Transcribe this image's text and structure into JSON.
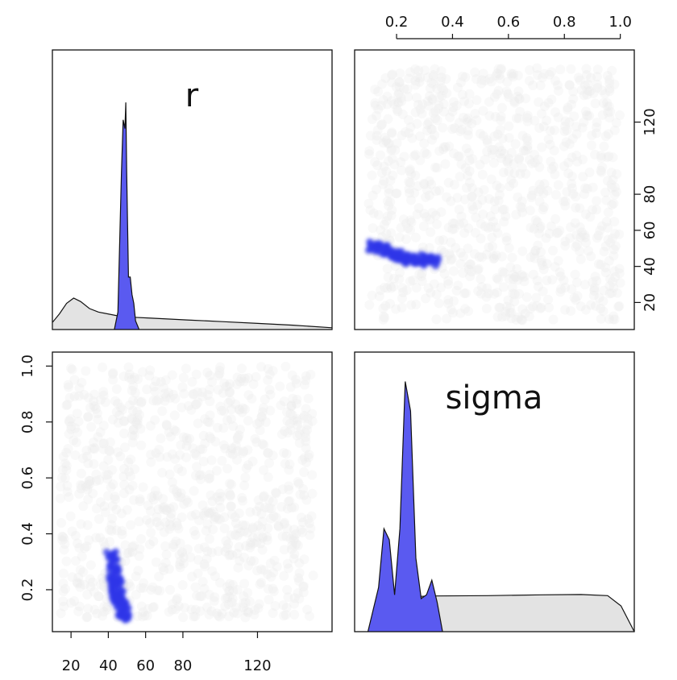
{
  "chart_data": {
    "type": "scatter",
    "parameters": [
      "r",
      "sigma"
    ],
    "panels": {
      "r_density": {
        "label": "r",
        "type": "density",
        "x_ticks": [
          20,
          40,
          60,
          80,
          120
        ],
        "xlim": [
          4,
          162
        ],
        "prior": {
          "x": [
            4,
            8,
            12,
            16,
            20,
            25,
            30,
            40,
            50,
            60,
            80,
            100,
            120,
            140,
            162
          ],
          "density": [
            0.004,
            0.009,
            0.015,
            0.018,
            0.016,
            0.012,
            0.01,
            0.008,
            0.007,
            0.0065,
            0.0055,
            0.0045,
            0.0035,
            0.0025,
            0.001
          ]
        },
        "posterior": {
          "x": [
            39,
            41,
            43,
            44,
            45,
            45.5,
            46,
            46.5,
            47,
            48,
            49,
            50,
            51,
            53
          ],
          "density": [
            0.0,
            0.01,
            0.09,
            0.12,
            0.115,
            0.13,
            0.09,
            0.06,
            0.03,
            0.03,
            0.02,
            0.015,
            0.005,
            0.0
          ]
        },
        "ylim": [
          0,
          0.16
        ]
      },
      "sigma_density": {
        "label": "sigma",
        "type": "density",
        "x_ticks": [
          0.2,
          0.4,
          0.6,
          0.8,
          1.0
        ],
        "xlim": [
          0.0,
          1.05
        ],
        "prior": {
          "x": [
            0.05,
            0.1,
            0.15,
            0.2,
            0.3,
            0.5,
            0.7,
            0.85,
            0.95,
            1.0,
            1.05
          ],
          "density": [
            0.0,
            0.5,
            0.9,
            0.95,
            0.97,
            0.98,
            1.0,
            1.01,
            0.98,
            0.7,
            0.0
          ]
        },
        "posterior": {
          "x": [
            0.05,
            0.09,
            0.11,
            0.13,
            0.15,
            0.17,
            0.19,
            0.21,
            0.23,
            0.25,
            0.27,
            0.29,
            0.31,
            0.33
          ],
          "density": [
            0.0,
            1.2,
            2.8,
            2.5,
            1.0,
            2.8,
            6.8,
            6.0,
            2.0,
            0.9,
            1.0,
            1.4,
            0.8,
            0.0
          ]
        },
        "ylim": [
          0,
          7.6
        ]
      },
      "scatter_sigma_vs_r": {
        "x": "r",
        "y": "sigma",
        "xlim": [
          10,
          160
        ],
        "ylim": [
          0.05,
          1.05
        ],
        "y_ticks": [
          0.2,
          0.4,
          0.6,
          0.8,
          1.0
        ],
        "x_ticks": [
          20,
          40,
          60,
          80,
          120
        ],
        "prior_range": {
          "r": [
            14,
            150
          ],
          "sigma": [
            0.1,
            1.0
          ]
        },
        "posterior_points": [
          [
            42,
            0.32
          ],
          [
            43,
            0.28
          ],
          [
            43.5,
            0.25
          ],
          [
            44,
            0.22
          ],
          [
            44.5,
            0.2
          ],
          [
            45,
            0.18
          ],
          [
            46,
            0.16
          ],
          [
            47,
            0.14
          ],
          [
            48,
            0.12
          ],
          [
            49,
            0.11
          ]
        ]
      },
      "scatter_r_vs_sigma": {
        "x": "sigma",
        "y": "r",
        "xlim": [
          0.05,
          1.05
        ],
        "ylim": [
          5,
          160
        ],
        "x_ticks": [
          0.2,
          0.4,
          0.6,
          0.8,
          1.0
        ],
        "y_ticks": [
          20,
          40,
          60,
          80,
          120
        ],
        "prior_range": {
          "sigma": [
            0.1,
            1.0
          ],
          "r": [
            10,
            150
          ]
        },
        "posterior_points": [
          [
            0.12,
            51
          ],
          [
            0.15,
            49
          ],
          [
            0.18,
            47
          ],
          [
            0.2,
            46
          ],
          [
            0.22,
            45
          ],
          [
            0.25,
            44
          ],
          [
            0.28,
            44
          ],
          [
            0.31,
            43
          ],
          [
            0.33,
            43
          ]
        ]
      }
    },
    "colors": {
      "prior": "#e3e3e3",
      "posterior": "#5a5af0",
      "posterior_points": "#2e35e8",
      "axis": "#111111"
    }
  }
}
